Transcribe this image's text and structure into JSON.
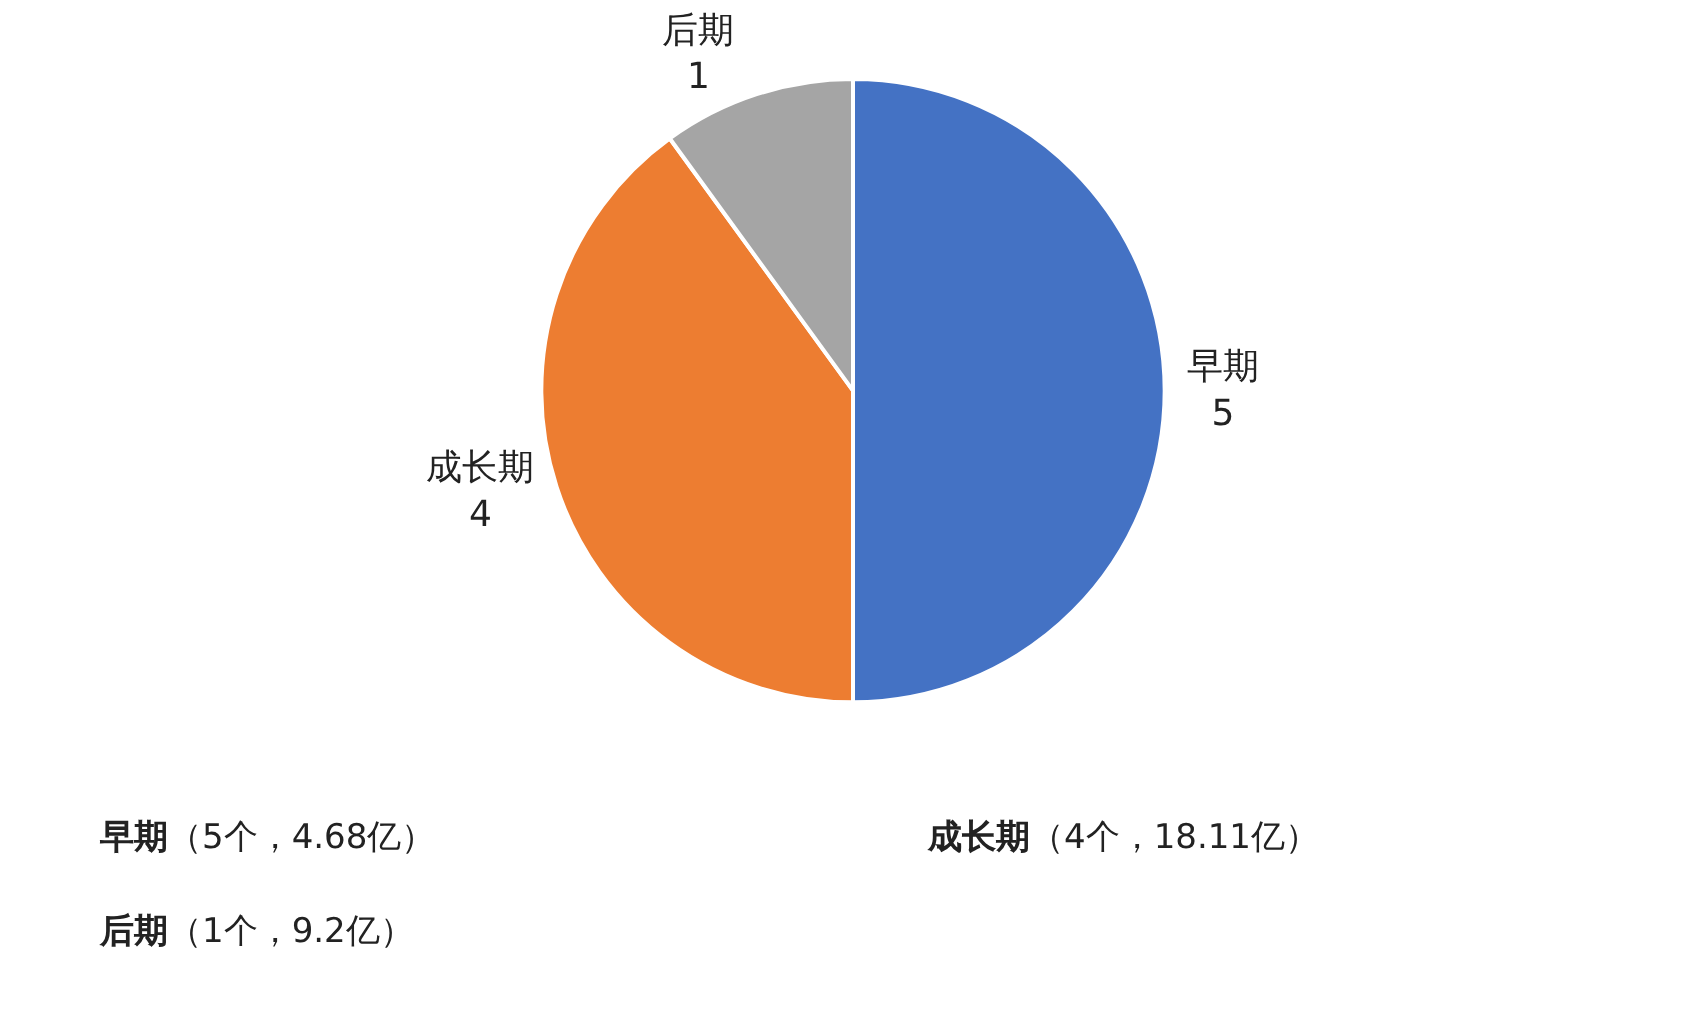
{
  "chart_data": {
    "type": "pie",
    "categories": [
      "早期",
      "成长期",
      "后期"
    ],
    "values": [
      5,
      4,
      1
    ],
    "colors": [
      "#4472c4",
      "#ed7d31",
      "#a5a5a5"
    ],
    "data_labels": true,
    "legend": false,
    "annotations": [
      "早期（5个，4.68亿）",
      "成长期（4个，18.11亿）",
      "后期（1个，9.2亿）"
    ]
  }
}
